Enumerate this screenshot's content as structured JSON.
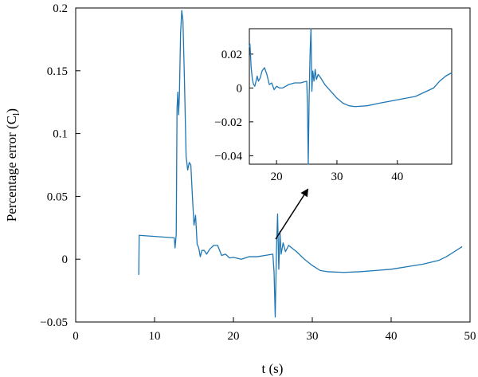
{
  "chart_data": [
    {
      "type": "line",
      "title": "",
      "xlabel": "t (s)",
      "ylabel_main": "Percentage error (C",
      "ylabel_sub": "l",
      "ylabel_close": ")",
      "xlim": [
        0,
        50
      ],
      "ylim": [
        -0.05,
        0.2
      ],
      "xticks": [
        0,
        10,
        20,
        30,
        40,
        50
      ],
      "yticks": [
        -0.05,
        0,
        0.05,
        0.1,
        0.15,
        0.2
      ],
      "xtick_labels": [
        "0",
        "10",
        "20",
        "30",
        "40",
        "50"
      ],
      "ytick_labels": [
        "−0.05",
        "0",
        "0.05",
        "0.1",
        "0.15",
        "0.2"
      ],
      "line_color": "#1f77b4",
      "x": [
        8.0,
        8.05,
        12.5,
        12.6,
        12.75,
        12.85,
        12.95,
        13.05,
        13.15,
        13.3,
        13.45,
        13.6,
        13.8,
        14.0,
        14.2,
        14.4,
        14.6,
        14.8,
        15.0,
        15.2,
        15.4,
        15.6,
        15.8,
        16.0,
        16.3,
        16.6,
        17.0,
        17.5,
        18.0,
        18.5,
        19.0,
        19.5,
        20.0,
        21.0,
        22.0,
        23.0,
        24.0,
        25.0,
        25.15,
        25.3,
        25.45,
        25.6,
        25.75,
        25.9,
        26.05,
        26.3,
        26.6,
        27.0,
        28.0,
        29.0,
        30.0,
        31.0,
        32.0,
        34.0,
        36.0,
        38.0,
        40.0,
        42.0,
        44.0,
        46.0,
        47.0,
        48.0,
        49.0
      ],
      "y": [
        -0.0125,
        0.019,
        0.017,
        0.009,
        0.02,
        0.12,
        0.133,
        0.115,
        0.13,
        0.18,
        0.198,
        0.19,
        0.14,
        0.082,
        0.071,
        0.077,
        0.075,
        0.05,
        0.027,
        0.035,
        0.012,
        0.009,
        0.002,
        0.007,
        0.007,
        0.004,
        0.008,
        0.011,
        0.011,
        0.003,
        0.004,
        0.001,
        0.0015,
        0.0,
        0.002,
        0.002,
        0.003,
        0.004,
        -0.01,
        -0.046,
        0.006,
        0.036,
        -0.008,
        0.022,
        0.004,
        0.013,
        0.006,
        0.011,
        0.006,
        0.0,
        -0.005,
        -0.009,
        -0.01,
        -0.0105,
        -0.01,
        -0.009,
        -0.008,
        -0.006,
        -0.004,
        -0.001,
        0.002,
        0.006,
        0.01
      ]
    },
    {
      "type": "line",
      "title": "",
      "xlim": [
        15.5,
        49.0
      ],
      "ylim": [
        -0.045,
        0.035
      ],
      "xticks": [
        20,
        30,
        40
      ],
      "yticks": [
        -0.04,
        -0.02,
        0,
        0.02
      ],
      "xtick_labels": [
        "20",
        "30",
        "40"
      ],
      "ytick_labels": [
        "−0.04",
        "−0.02",
        "0",
        "0.02"
      ],
      "line_color": "#1f77b4",
      "x": [
        15.5,
        15.6,
        15.8,
        16.0,
        16.2,
        16.4,
        16.6,
        16.8,
        17.0,
        17.3,
        17.6,
        18.0,
        18.4,
        18.8,
        19.2,
        19.6,
        20.0,
        20.5,
        21.0,
        22.0,
        23.0,
        24.0,
        25.0,
        25.12,
        25.25,
        25.4,
        25.55,
        25.7,
        25.85,
        26.0,
        26.2,
        26.4,
        26.6,
        26.9,
        27.3,
        28.0,
        29.0,
        30.0,
        31.0,
        32.0,
        33.0,
        35.0,
        37.0,
        40.0,
        43.0,
        46.0,
        47.0,
        48.0,
        49.0
      ],
      "y": [
        0.024,
        0.026,
        0.012,
        0.005,
        0.002,
        0.001,
        0.004,
        0.007,
        0.004,
        0.006,
        0.01,
        0.012,
        0.008,
        0.002,
        0.003,
        -0.001,
        0.001,
        0.0,
        0.0,
        0.002,
        0.003,
        0.003,
        0.004,
        -0.01,
        -0.045,
        -0.005,
        0.02,
        0.035,
        -0.002,
        0.01,
        0.004,
        0.011,
        0.005,
        0.008,
        0.006,
        0.002,
        -0.002,
        -0.006,
        -0.009,
        -0.0105,
        -0.011,
        -0.0105,
        -0.009,
        -0.007,
        -0.005,
        0.0,
        0.004,
        0.007,
        0.009
      ]
    }
  ]
}
